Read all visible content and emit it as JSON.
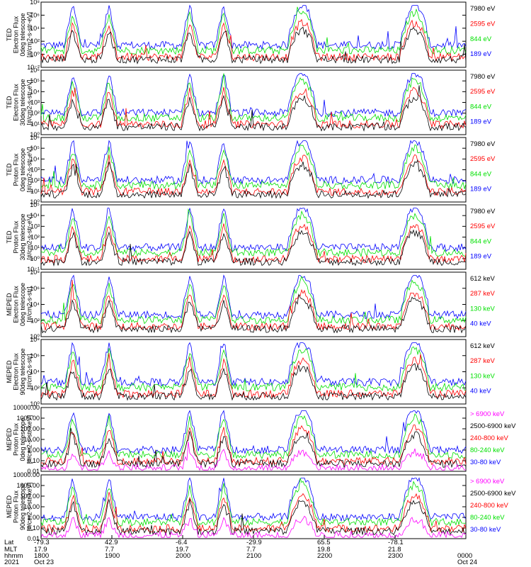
{
  "colors": {
    "blue": "#0000ff",
    "red": "#ff0000",
    "green": "#00e000",
    "black": "#000000",
    "magenta": "#ff00ff"
  },
  "chart_data": [
    {
      "type": "line",
      "scale": "log",
      "ylabel": [
        "TED",
        "Electron Flux",
        "0deg telescope",
        "[#/cm2-s-str-eV]"
      ],
      "yticks": [
        "10⁻²",
        "10⁰",
        "10²",
        "10⁴",
        "10⁶",
        "10⁸"
      ],
      "ylim": [
        -2,
        8
      ],
      "legend": [
        {
          "name": "7980 eV",
          "color": "black"
        },
        {
          "name": "2595 eV",
          "color": "red"
        },
        {
          "name": "844 eV",
          "color": "green"
        },
        {
          "name": "189 eV",
          "color": "blue"
        }
      ]
    },
    {
      "type": "line",
      "scale": "log",
      "ylabel": [
        "TED",
        "Electron Flux",
        "30deg telescope",
        "[#/cm2-s-str-eV]"
      ],
      "yticks": [
        "10⁰",
        "10¹",
        "10²",
        "10³",
        "10⁴",
        "10⁵",
        "10⁶"
      ],
      "ylim": [
        0,
        6
      ],
      "legend": [
        {
          "name": "7980 eV",
          "color": "black"
        },
        {
          "name": "2595 eV",
          "color": "red"
        },
        {
          "name": "844 eV",
          "color": "green"
        },
        {
          "name": "189 eV",
          "color": "blue"
        }
      ]
    },
    {
      "type": "line",
      "scale": "log",
      "ylabel": [
        "TED",
        "Proton Flux",
        "0deg telescope",
        "[#/cm2-s-str-eV]"
      ],
      "yticks": [
        "10⁰",
        "10¹",
        "10²",
        "10³",
        "10⁴",
        "10⁵",
        "10⁶"
      ],
      "ylim": [
        0,
        6
      ],
      "legend": [
        {
          "name": "7980 eV",
          "color": "black"
        },
        {
          "name": "2595 eV",
          "color": "red"
        },
        {
          "name": "844 eV",
          "color": "green"
        },
        {
          "name": "189 eV",
          "color": "blue"
        }
      ]
    },
    {
      "type": "line",
      "scale": "log",
      "ylabel": [
        "TED",
        "Proton Flux",
        "30deg telescope",
        "[#/cm2-s-str-eV]"
      ],
      "yticks": [
        "10⁻¹",
        "10⁰",
        "10¹",
        "10²",
        "10³",
        "10⁴",
        "10⁵"
      ],
      "ylim": [
        -1,
        5
      ],
      "legend": [
        {
          "name": "7980 eV",
          "color": "black"
        },
        {
          "name": "2595 eV",
          "color": "red"
        },
        {
          "name": "844 eV",
          "color": "green"
        },
        {
          "name": "189 eV",
          "color": "blue"
        }
      ]
    },
    {
      "type": "line",
      "scale": "log",
      "ylabel": [
        "MEPED",
        "Electron Flux",
        "0deg telescope",
        "[#/cm2-s-str]"
      ],
      "yticks": [
        "10⁰",
        "10²",
        "10⁴",
        "10⁶",
        "10⁸"
      ],
      "ylim": [
        0,
        8
      ],
      "legend": [
        {
          "name": "612 keV",
          "color": "black"
        },
        {
          "name": "287 keV",
          "color": "red"
        },
        {
          "name": "130 keV",
          "color": "green"
        },
        {
          "name": "40 keV",
          "color": "blue"
        }
      ]
    },
    {
      "type": "line",
      "scale": "log",
      "ylabel": [
        "MEPED",
        "Electron Flux",
        "90deg telescope",
        "[#/cm2-s-str]"
      ],
      "yticks": [
        "10⁰",
        "10²",
        "10⁴",
        "10⁶",
        "10⁸"
      ],
      "ylim": [
        0,
        8
      ],
      "legend": [
        {
          "name": "612 keV",
          "color": "black"
        },
        {
          "name": "287 keV",
          "color": "red"
        },
        {
          "name": "130 keV",
          "color": "green"
        },
        {
          "name": "40 keV",
          "color": "blue"
        }
      ]
    },
    {
      "type": "line",
      "scale": "log",
      "ylabel": [
        "MEPED",
        "Proton Flux",
        "0deg telescope",
        "[#/cm2-s-str-keV]"
      ],
      "yticks": [
        "0.01",
        "0.10",
        "1.00",
        "10.00",
        "100.00",
        "1000.00",
        "10000.00"
      ],
      "ylim": [
        -2,
        4
      ],
      "legend": [
        {
          "name": "> 6900 keV",
          "color": "magenta"
        },
        {
          "name": "2500-6900 keV",
          "color": "black"
        },
        {
          "name": "240-800 keV",
          "color": "red"
        },
        {
          "name": "80-240 keV",
          "color": "green"
        },
        {
          "name": "30-80 keV",
          "color": "blue"
        }
      ]
    },
    {
      "type": "line",
      "scale": "log",
      "ylabel": [
        "MEPED",
        "Proton Flux",
        "90deg telescope",
        "[#/cm2-s-str-keV]"
      ],
      "yticks": [
        "0.01",
        "0.10",
        "1.00",
        "10.00",
        "100.00",
        "1000.00",
        "10000.00"
      ],
      "ylim": [
        -2,
        4
      ],
      "legend": [
        {
          "name": "> 6900 keV",
          "color": "magenta"
        },
        {
          "name": "2500-6900 keV",
          "color": "black"
        },
        {
          "name": "240-800 keV",
          "color": "red"
        },
        {
          "name": "80-240 keV",
          "color": "green"
        },
        {
          "name": "30-80 keV",
          "color": "blue"
        }
      ]
    }
  ],
  "xaxis": {
    "row_labels": [
      "Lat",
      "MLT",
      "hhmm",
      "2021"
    ],
    "ticks": [
      {
        "lat": "-79.3",
        "mlt": "17.9",
        "hhmm": "1800",
        "date": "Oct 23"
      },
      {
        "lat": "42.9",
        "mlt": "7.7",
        "hhmm": "1900",
        "date": ""
      },
      {
        "lat": "-6.4",
        "mlt": "19.7",
        "hhmm": "2000",
        "date": ""
      },
      {
        "lat": "-29.9",
        "mlt": "7.7",
        "hhmm": "2100",
        "date": ""
      },
      {
        "lat": "65.5",
        "mlt": "19.8",
        "hhmm": "2200",
        "date": ""
      },
      {
        "lat": "-78.1",
        "mlt": "21.8",
        "hhmm": "2300",
        "date": ""
      },
      {
        "lat": "",
        "mlt": "",
        "hhmm": "0000",
        "date": "Oct 24"
      }
    ]
  }
}
